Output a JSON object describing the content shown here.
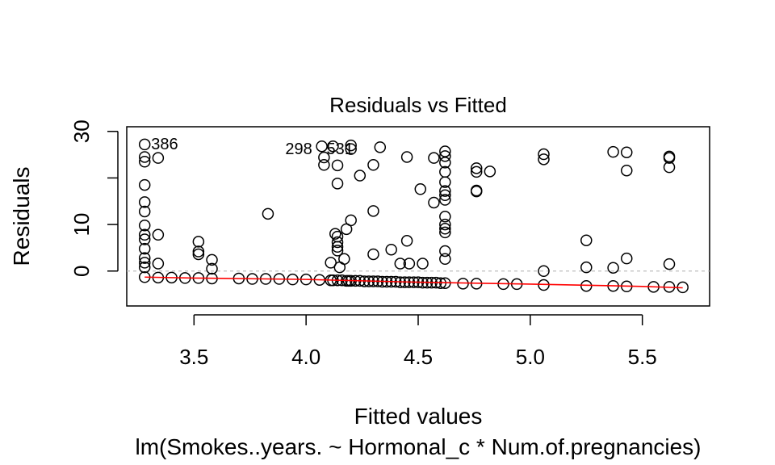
{
  "chart_data": {
    "type": "scatter",
    "title": "Residuals vs Fitted",
    "xlabel": "Fitted values",
    "ylabel": "Residuals",
    "subtitle": "lm(Smokes..years. ~ Hormonal_c * Num.of.pregnancies)",
    "xlim": [
      3.2,
      5.8
    ],
    "ylim": [
      -7.5,
      31
    ],
    "x_ticks": [
      3.5,
      4.0,
      4.5,
      5.0,
      5.5
    ],
    "x_tick_labels": [
      "3.5",
      "4.0",
      "4.5",
      "5.0",
      "5.5"
    ],
    "y_ticks": [
      0,
      10,
      20,
      30
    ],
    "y_tick_labels": [
      "0",
      "10",
      "",
      "30"
    ],
    "reference_line_y": 0,
    "annotations": [
      {
        "text": "386",
        "x": 3.28,
        "y": 27.2
      },
      {
        "text": "298",
        "x": 4.08,
        "y": 26.8
      },
      {
        "text": "531",
        "x": 4.12,
        "y": 26.8
      }
    ],
    "points": [
      [
        3.28,
        27.2
      ],
      [
        3.28,
        24.5
      ],
      [
        3.28,
        23.5
      ],
      [
        3.28,
        18.5
      ],
      [
        3.28,
        14.8
      ],
      [
        3.28,
        12.8
      ],
      [
        3.28,
        9.8
      ],
      [
        3.28,
        7.8
      ],
      [
        3.28,
        6.8
      ],
      [
        3.28,
        4.8
      ],
      [
        3.28,
        2.8
      ],
      [
        3.28,
        1.8
      ],
      [
        3.28,
        0.8
      ],
      [
        3.28,
        -1.3
      ],
      [
        3.34,
        24.3
      ],
      [
        3.34,
        7.8
      ],
      [
        3.34,
        1.6
      ],
      [
        3.34,
        -1.4
      ],
      [
        3.4,
        -1.4
      ],
      [
        3.46,
        -1.5
      ],
      [
        3.52,
        -1.5
      ],
      [
        3.52,
        6.3
      ],
      [
        3.52,
        4.2
      ],
      [
        3.52,
        3.6
      ],
      [
        3.58,
        -1.6
      ],
      [
        3.58,
        2.4
      ],
      [
        3.58,
        0.5
      ],
      [
        3.7,
        -1.6
      ],
      [
        3.76,
        -1.7
      ],
      [
        3.82,
        -1.7
      ],
      [
        3.83,
        12.3
      ],
      [
        3.88,
        -1.7
      ],
      [
        3.94,
        -1.8
      ],
      [
        4.0,
        -1.8
      ],
      [
        4.06,
        -1.9
      ],
      [
        4.07,
        26.8
      ],
      [
        4.08,
        24.4
      ],
      [
        4.08,
        22.8
      ],
      [
        4.11,
        -2.0
      ],
      [
        4.11,
        1.8
      ],
      [
        4.12,
        -2.0
      ],
      [
        4.12,
        26.8
      ],
      [
        4.13,
        8.0
      ],
      [
        4.14,
        22.7
      ],
      [
        4.14,
        18.8
      ],
      [
        4.14,
        7.4
      ],
      [
        4.14,
        6.2
      ],
      [
        4.14,
        5.2
      ],
      [
        4.14,
        4.4
      ],
      [
        4.14,
        -2.0
      ],
      [
        4.15,
        0.8
      ],
      [
        4.16,
        -2.0
      ],
      [
        4.17,
        2.6
      ],
      [
        4.18,
        -2.1
      ],
      [
        4.18,
        9.0
      ],
      [
        4.19,
        -2.1
      ],
      [
        4.2,
        27.0
      ],
      [
        4.2,
        26.2
      ],
      [
        4.2,
        10.9
      ],
      [
        4.2,
        -2.1
      ],
      [
        4.22,
        -2.1
      ],
      [
        4.24,
        -2.1
      ],
      [
        4.24,
        20.5
      ],
      [
        4.26,
        -2.2
      ],
      [
        4.28,
        -2.2
      ],
      [
        4.3,
        -2.2
      ],
      [
        4.3,
        22.8
      ],
      [
        4.3,
        12.9
      ],
      [
        4.3,
        3.6
      ],
      [
        4.32,
        -2.2
      ],
      [
        4.33,
        26.6
      ],
      [
        4.34,
        -2.3
      ],
      [
        4.36,
        -2.3
      ],
      [
        4.38,
        -2.3
      ],
      [
        4.38,
        4.6
      ],
      [
        4.4,
        -2.3
      ],
      [
        4.42,
        -2.4
      ],
      [
        4.42,
        1.6
      ],
      [
        4.44,
        -2.4
      ],
      [
        4.45,
        24.5
      ],
      [
        4.45,
        6.5
      ],
      [
        4.46,
        1.6
      ],
      [
        4.46,
        -2.4
      ],
      [
        4.48,
        -2.4
      ],
      [
        4.5,
        -2.4
      ],
      [
        4.51,
        17.6
      ],
      [
        4.52,
        1.6
      ],
      [
        4.52,
        -2.5
      ],
      [
        4.54,
        -2.5
      ],
      [
        4.56,
        -2.5
      ],
      [
        4.57,
        14.7
      ],
      [
        4.57,
        24.3
      ],
      [
        4.58,
        -2.5
      ],
      [
        4.6,
        -2.6
      ],
      [
        4.62,
        25.7
      ],
      [
        4.62,
        24.7
      ],
      [
        4.62,
        23.3
      ],
      [
        4.62,
        21.3
      ],
      [
        4.62,
        19.1
      ],
      [
        4.62,
        17.2
      ],
      [
        4.62,
        16.3
      ],
      [
        4.62,
        15.3
      ],
      [
        4.62,
        11.7
      ],
      [
        4.62,
        10.0
      ],
      [
        4.62,
        9.1
      ],
      [
        4.62,
        8.3
      ],
      [
        4.62,
        4.3
      ],
      [
        4.62,
        2.6
      ],
      [
        4.62,
        -2.6
      ],
      [
        4.7,
        -2.7
      ],
      [
        4.76,
        -2.7
      ],
      [
        4.76,
        22.1
      ],
      [
        4.76,
        21.3
      ],
      [
        4.76,
        17.3
      ],
      [
        4.76,
        17.1
      ],
      [
        4.82,
        21.4
      ],
      [
        4.88,
        -2.8
      ],
      [
        4.94,
        -2.8
      ],
      [
        5.06,
        25.1
      ],
      [
        5.06,
        24.0
      ],
      [
        5.06,
        0.0
      ],
      [
        5.06,
        -3.0
      ],
      [
        5.25,
        6.6
      ],
      [
        5.25,
        0.8
      ],
      [
        5.25,
        -3.2
      ],
      [
        5.37,
        25.6
      ],
      [
        5.37,
        0.7
      ],
      [
        5.37,
        -3.2
      ],
      [
        5.43,
        25.5
      ],
      [
        5.43,
        21.6
      ],
      [
        5.43,
        2.7
      ],
      [
        5.43,
        -3.3
      ],
      [
        5.55,
        -3.4
      ],
      [
        5.62,
        24.6
      ],
      [
        5.62,
        24.3
      ],
      [
        5.62,
        22.3
      ],
      [
        5.62,
        1.5
      ],
      [
        5.62,
        -3.4
      ],
      [
        5.68,
        -3.5
      ]
    ],
    "smooth_line": [
      [
        3.28,
        -1.3
      ],
      [
        3.5,
        -1.5
      ],
      [
        4.0,
        -1.8
      ],
      [
        4.5,
        -2.4
      ],
      [
        5.0,
        -2.8
      ],
      [
        5.5,
        -3.3
      ],
      [
        5.68,
        -3.6
      ]
    ],
    "colors": {
      "points": "#000000",
      "smooth": "#ff0000",
      "reference": "#bebebe"
    }
  }
}
